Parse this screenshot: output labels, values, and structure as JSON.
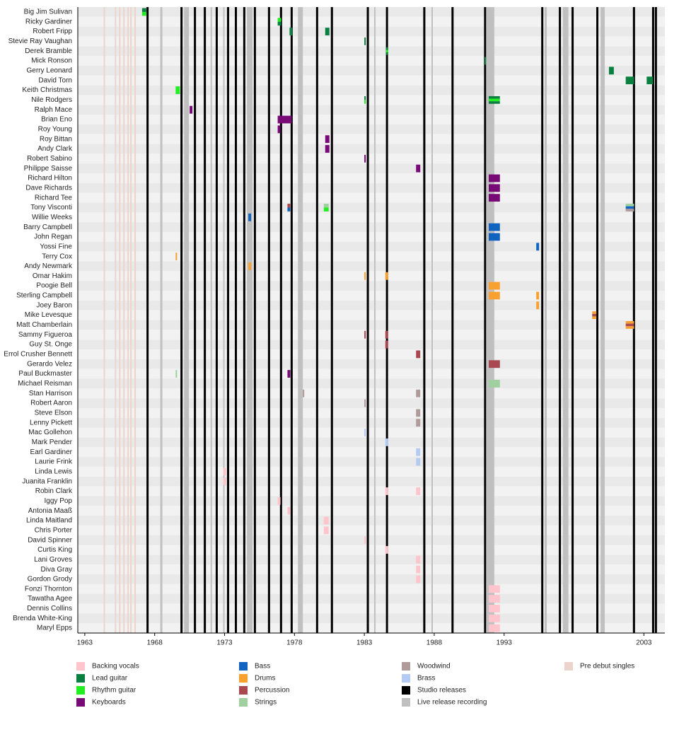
{
  "chart_data": {
    "type": "timeline",
    "xlim": [
      1962.5,
      2004.5
    ],
    "xticks": [
      1963,
      1968,
      1973,
      1978,
      1983,
      1988,
      1993,
      2003
    ],
    "roles": [
      {
        "name": "Backing vocals",
        "color": "#ffc4cc"
      },
      {
        "name": "Lead guitar",
        "color": "#0a8040"
      },
      {
        "name": "Rhythm guitar",
        "color": "#22ee22"
      },
      {
        "name": "Keyboards",
        "color": "#780a78"
      },
      {
        "name": "Bass",
        "color": "#1064c0"
      },
      {
        "name": "Drums",
        "color": "#f8a030"
      },
      {
        "name": "Percussion",
        "color": "#a84850"
      },
      {
        "name": "Strings",
        "color": "#a0d0a0"
      },
      {
        "name": "Woodwind",
        "color": "#b09a9a"
      },
      {
        "name": "Brass",
        "color": "#b4ccf4"
      }
    ],
    "studio_releases": {
      "name": "Studio releases",
      "color": "#000000",
      "years": [
        1967.49,
        1969.92,
        1970.88,
        1971.59,
        1972.44,
        1973.25,
        1973.81,
        1974.41,
        1975.17,
        1976.18,
        1977.04,
        1977.8,
        1979.62,
        1980.68,
        1983.25,
        1984.62,
        1987.29,
        1989.31,
        1991.64,
        1995.73,
        1996.99,
        1997.9,
        1999.67,
        2002.29,
        2003.66,
        2003.86
      ]
    },
    "live_recordings": {
      "name": "Live release recording",
      "color": "#c0c0c0",
      "ranges": [
        [
          1968.4,
          1968.55
        ],
        [
          1970.1,
          1970.45
        ],
        [
          1971.5,
          1971.6
        ],
        [
          1972.0,
          1972.1
        ],
        [
          1972.9,
          1973.0
        ],
        [
          1974.6,
          1975.0
        ],
        [
          1978.25,
          1978.6
        ],
        [
          1983.7,
          1983.8
        ],
        [
          1987.8,
          1987.9
        ],
        [
          1991.75,
          1992.3
        ],
        [
          1995.9,
          1996.05
        ],
        [
          1997.2,
          1997.6
        ],
        [
          1999.9,
          2000.2
        ]
      ]
    },
    "pre_debut_singles": {
      "name": "Pre debut singles",
      "color": "#ecd4cc",
      "years": [
        1964.4,
        1965.2,
        1965.5,
        1965.8,
        1966.1,
        1966.3,
        1966.6
      ]
    },
    "members": [
      {
        "name": "Big Jim Sulivan",
        "spans": [
          {
            "start": 1967.1,
            "end": 1967.4,
            "roles": [
              "Lead guitar",
              "Rhythm guitar"
            ]
          }
        ]
      },
      {
        "name": "Ricky Gardiner",
        "spans": [
          {
            "start": 1976.8,
            "end": 1977.05,
            "roles": [
              "Rhythm guitar",
              "Lead guitar"
            ]
          }
        ]
      },
      {
        "name": "Robert Fripp",
        "spans": [
          {
            "start": 1977.65,
            "end": 1977.85,
            "roles": [
              "Lead guitar"
            ]
          },
          {
            "start": 1980.2,
            "end": 1980.5,
            "roles": [
              "Lead guitar"
            ]
          }
        ]
      },
      {
        "name": "Stevie Ray Vaughan",
        "spans": [
          {
            "start": 1983.0,
            "end": 1983.1,
            "roles": [
              "Lead guitar"
            ]
          }
        ]
      },
      {
        "name": "Derek Bramble",
        "spans": [
          {
            "start": 1984.55,
            "end": 1984.7,
            "roles": [
              "Lead guitar",
              "Rhythm guitar",
              "Lead guitar"
            ]
          }
        ]
      },
      {
        "name": "Mick Ronson",
        "spans": [
          {
            "start": 1991.6,
            "end": 1991.7,
            "roles": [
              "Lead guitar"
            ]
          }
        ]
      },
      {
        "name": "Gerry Leonard",
        "spans": [
          {
            "start": 2000.5,
            "end": 2000.85,
            "roles": [
              "Lead guitar"
            ]
          }
        ]
      },
      {
        "name": "David Torn",
        "spans": [
          {
            "start": 2001.7,
            "end": 2002.3,
            "roles": [
              "Lead guitar"
            ]
          },
          {
            "start": 2003.2,
            "end": 2003.65,
            "roles": [
              "Lead guitar"
            ]
          }
        ]
      },
      {
        "name": "Keith Christmas",
        "spans": [
          {
            "start": 1969.5,
            "end": 1969.8,
            "roles": [
              "Rhythm guitar"
            ]
          }
        ]
      },
      {
        "name": "Nile Rodgers",
        "spans": [
          {
            "start": 1983.0,
            "end": 1983.1,
            "roles": [
              "Lead guitar",
              "Rhythm guitar"
            ]
          },
          {
            "start": 1991.9,
            "end": 1992.7,
            "roles": [
              "Lead guitar",
              "Rhythm guitar",
              "Lead guitar"
            ]
          }
        ]
      },
      {
        "name": "Ralph Mace",
        "spans": [
          {
            "start": 1970.5,
            "end": 1970.7,
            "roles": [
              "Keyboards"
            ]
          }
        ]
      },
      {
        "name": "Brian Eno",
        "spans": [
          {
            "start": 1976.8,
            "end": 1977.8,
            "roles": [
              "Keyboards",
              "Keyboards"
            ]
          }
        ]
      },
      {
        "name": "Roy Young",
        "spans": [
          {
            "start": 1976.8,
            "end": 1977.0,
            "roles": [
              "Keyboards"
            ]
          }
        ]
      },
      {
        "name": "Roy Bittan",
        "spans": [
          {
            "start": 1980.2,
            "end": 1980.5,
            "roles": [
              "Keyboards"
            ]
          }
        ]
      },
      {
        "name": "Andy Clark",
        "spans": [
          {
            "start": 1980.2,
            "end": 1980.5,
            "roles": [
              "Keyboards"
            ]
          }
        ]
      },
      {
        "name": "Robert Sabino",
        "spans": [
          {
            "start": 1983.0,
            "end": 1983.1,
            "roles": [
              "Keyboards"
            ]
          }
        ]
      },
      {
        "name": "Philippe Saisse",
        "spans": [
          {
            "start": 1986.7,
            "end": 1987.0,
            "roles": [
              "Keyboards"
            ]
          }
        ]
      },
      {
        "name": "Richard Hilton",
        "spans": [
          {
            "start": 1991.9,
            "end": 1992.7,
            "roles": [
              "Keyboards"
            ]
          }
        ]
      },
      {
        "name": "Dave Richards",
        "spans": [
          {
            "start": 1991.9,
            "end": 1992.7,
            "roles": [
              "Keyboards"
            ]
          }
        ]
      },
      {
        "name": "Richard Tee",
        "spans": [
          {
            "start": 1991.9,
            "end": 1992.7,
            "roles": [
              "Keyboards"
            ]
          }
        ]
      },
      {
        "name": "Tony Visconti",
        "spans": [
          {
            "start": 1977.5,
            "end": 1977.7,
            "roles": [
              "Percussion",
              "Bass"
            ]
          },
          {
            "start": 1980.1,
            "end": 1980.45,
            "roles": [
              "Strings",
              "Rhythm guitar"
            ]
          },
          {
            "start": 2001.7,
            "end": 2002.3,
            "roles": [
              "Strings",
              "Bass",
              "Woodwind"
            ]
          }
        ]
      },
      {
        "name": "Willie Weeks",
        "spans": [
          {
            "start": 1974.7,
            "end": 1974.9,
            "roles": [
              "Bass"
            ]
          }
        ]
      },
      {
        "name": "Barry Campbell",
        "spans": [
          {
            "start": 1991.9,
            "end": 1992.7,
            "roles": [
              "Bass"
            ]
          }
        ]
      },
      {
        "name": "John Regan",
        "spans": [
          {
            "start": 1991.9,
            "end": 1992.7,
            "roles": [
              "Bass"
            ]
          }
        ]
      },
      {
        "name": "Yossi Fine",
        "spans": [
          {
            "start": 1995.3,
            "end": 1995.5,
            "roles": [
              "Bass"
            ]
          }
        ]
      },
      {
        "name": "Terry Cox",
        "spans": [
          {
            "start": 1969.5,
            "end": 1969.6,
            "roles": [
              "Drums"
            ]
          }
        ]
      },
      {
        "name": "Andy Newmark",
        "spans": [
          {
            "start": 1974.7,
            "end": 1974.9,
            "roles": [
              "Drums"
            ]
          }
        ]
      },
      {
        "name": "Omar Hakim",
        "spans": [
          {
            "start": 1983.0,
            "end": 1983.1,
            "roles": [
              "Drums"
            ]
          },
          {
            "start": 1984.5,
            "end": 1984.7,
            "roles": [
              "Drums"
            ]
          }
        ]
      },
      {
        "name": "Poogie Bell",
        "spans": [
          {
            "start": 1991.9,
            "end": 1992.7,
            "roles": [
              "Drums"
            ]
          }
        ]
      },
      {
        "name": "Sterling Campbell",
        "spans": [
          {
            "start": 1991.9,
            "end": 1992.7,
            "roles": [
              "Drums"
            ]
          },
          {
            "start": 1995.3,
            "end": 1995.5,
            "roles": [
              "Drums"
            ]
          }
        ]
      },
      {
        "name": "Joey Baron",
        "spans": [
          {
            "start": 1995.3,
            "end": 1995.5,
            "roles": [
              "Drums"
            ]
          }
        ]
      },
      {
        "name": "Mike Levesque",
        "spans": [
          {
            "start": 1999.3,
            "end": 1999.6,
            "roles": [
              "Drums",
              "Percussion",
              "Drums"
            ]
          }
        ]
      },
      {
        "name": "Matt Chamberlain",
        "spans": [
          {
            "start": 2001.7,
            "end": 2002.3,
            "roles": [
              "Drums",
              "Percussion",
              "Drums"
            ]
          }
        ]
      },
      {
        "name": "Sammy Figueroa",
        "spans": [
          {
            "start": 1983.0,
            "end": 1983.1,
            "roles": [
              "Percussion"
            ]
          },
          {
            "start": 1984.5,
            "end": 1984.7,
            "roles": [
              "Percussion"
            ]
          }
        ]
      },
      {
        "name": "Guy St. Onge",
        "spans": [
          {
            "start": 1984.5,
            "end": 1984.7,
            "roles": [
              "Percussion"
            ]
          }
        ]
      },
      {
        "name": "Errol Crusher Bennett",
        "spans": [
          {
            "start": 1986.7,
            "end": 1987.0,
            "roles": [
              "Percussion"
            ]
          }
        ]
      },
      {
        "name": "Gerardo Velez",
        "spans": [
          {
            "start": 1991.9,
            "end": 1992.7,
            "roles": [
              "Percussion"
            ]
          }
        ]
      },
      {
        "name": "Paul Buckmaster",
        "spans": [
          {
            "start": 1969.5,
            "end": 1969.6,
            "roles": [
              "Strings"
            ]
          },
          {
            "start": 1977.5,
            "end": 1977.7,
            "roles": [
              "Keyboards"
            ]
          }
        ]
      },
      {
        "name": "Michael Reisman",
        "spans": [
          {
            "start": 1991.9,
            "end": 1992.7,
            "roles": [
              "Strings"
            ]
          }
        ]
      },
      {
        "name": "Stan Harrison",
        "spans": [
          {
            "start": 1978.6,
            "end": 1978.7,
            "roles": [
              "Woodwind"
            ]
          },
          {
            "start": 1986.7,
            "end": 1987.0,
            "roles": [
              "Woodwind"
            ]
          }
        ]
      },
      {
        "name": "Robert Aaron",
        "spans": [
          {
            "start": 1983.0,
            "end": 1983.1,
            "roles": [
              "Woodwind"
            ]
          }
        ]
      },
      {
        "name": "Steve Elson",
        "spans": [
          {
            "start": 1986.7,
            "end": 1987.0,
            "roles": [
              "Woodwind"
            ]
          }
        ]
      },
      {
        "name": "Lenny Pickett",
        "spans": [
          {
            "start": 1986.7,
            "end": 1987.0,
            "roles": [
              "Woodwind"
            ]
          }
        ]
      },
      {
        "name": "Mac Gollehon",
        "spans": [
          {
            "start": 1983.0,
            "end": 1983.1,
            "roles": [
              "Brass"
            ]
          }
        ]
      },
      {
        "name": "Mark Pender",
        "spans": [
          {
            "start": 1984.5,
            "end": 1984.7,
            "roles": [
              "Brass"
            ]
          }
        ]
      },
      {
        "name": "Earl Gardiner",
        "spans": [
          {
            "start": 1986.7,
            "end": 1987.0,
            "roles": [
              "Brass"
            ]
          }
        ]
      },
      {
        "name": "Laurie Frink",
        "spans": [
          {
            "start": 1986.7,
            "end": 1987.0,
            "roles": [
              "Brass"
            ]
          }
        ]
      },
      {
        "name": "Linda Lewis",
        "spans": [
          {
            "start": 1972.9,
            "end": 1973.1,
            "roles": [
              "Backing vocals"
            ]
          }
        ]
      },
      {
        "name": "Juanita Franklin",
        "spans": [
          {
            "start": 1972.9,
            "end": 1973.1,
            "roles": [
              "Backing vocals"
            ]
          }
        ]
      },
      {
        "name": "Robin Clark",
        "spans": [
          {
            "start": 1984.5,
            "end": 1984.7,
            "roles": [
              "Backing vocals"
            ]
          },
          {
            "start": 1986.7,
            "end": 1987.0,
            "roles": [
              "Backing vocals"
            ]
          }
        ]
      },
      {
        "name": "Iggy Pop",
        "spans": [
          {
            "start": 1976.8,
            "end": 1977.0,
            "roles": [
              "Backing vocals"
            ]
          }
        ]
      },
      {
        "name": "Antonia Maaß",
        "spans": [
          {
            "start": 1977.5,
            "end": 1977.7,
            "roles": [
              "Backing vocals"
            ]
          }
        ]
      },
      {
        "name": "Linda Maitland",
        "spans": [
          {
            "start": 1980.1,
            "end": 1980.45,
            "roles": [
              "Backing vocals"
            ]
          }
        ]
      },
      {
        "name": "Chris Porter",
        "spans": [
          {
            "start": 1980.1,
            "end": 1980.45,
            "roles": [
              "Backing vocals"
            ]
          }
        ]
      },
      {
        "name": "David Spinner",
        "spans": [
          {
            "start": 1983.0,
            "end": 1983.1,
            "roles": [
              "Backing vocals"
            ]
          }
        ]
      },
      {
        "name": "Curtis King",
        "spans": [
          {
            "start": 1984.5,
            "end": 1984.7,
            "roles": [
              "Backing vocals"
            ]
          }
        ]
      },
      {
        "name": "Lani Groves",
        "spans": [
          {
            "start": 1986.7,
            "end": 1987.0,
            "roles": [
              "Backing vocals"
            ]
          }
        ]
      },
      {
        "name": "Diva Gray",
        "spans": [
          {
            "start": 1986.7,
            "end": 1987.0,
            "roles": [
              "Backing vocals"
            ]
          }
        ]
      },
      {
        "name": "Gordon Grody",
        "spans": [
          {
            "start": 1986.7,
            "end": 1987.0,
            "roles": [
              "Backing vocals"
            ]
          }
        ]
      },
      {
        "name": "Fonzi Thornton",
        "spans": [
          {
            "start": 1991.9,
            "end": 1992.7,
            "roles": [
              "Backing vocals"
            ]
          }
        ]
      },
      {
        "name": "Tawatha Agee",
        "spans": [
          {
            "start": 1991.9,
            "end": 1992.7,
            "roles": [
              "Backing vocals"
            ]
          }
        ]
      },
      {
        "name": "Dennis Collins",
        "spans": [
          {
            "start": 1991.9,
            "end": 1992.7,
            "roles": [
              "Backing vocals"
            ]
          }
        ]
      },
      {
        "name": "Brenda White-King",
        "spans": [
          {
            "start": 1991.9,
            "end": 1992.7,
            "roles": [
              "Backing vocals"
            ]
          }
        ]
      },
      {
        "name": "Maryl Epps",
        "spans": [
          {
            "start": 1991.9,
            "end": 1992.7,
            "roles": [
              "Backing vocals"
            ]
          }
        ]
      }
    ]
  }
}
